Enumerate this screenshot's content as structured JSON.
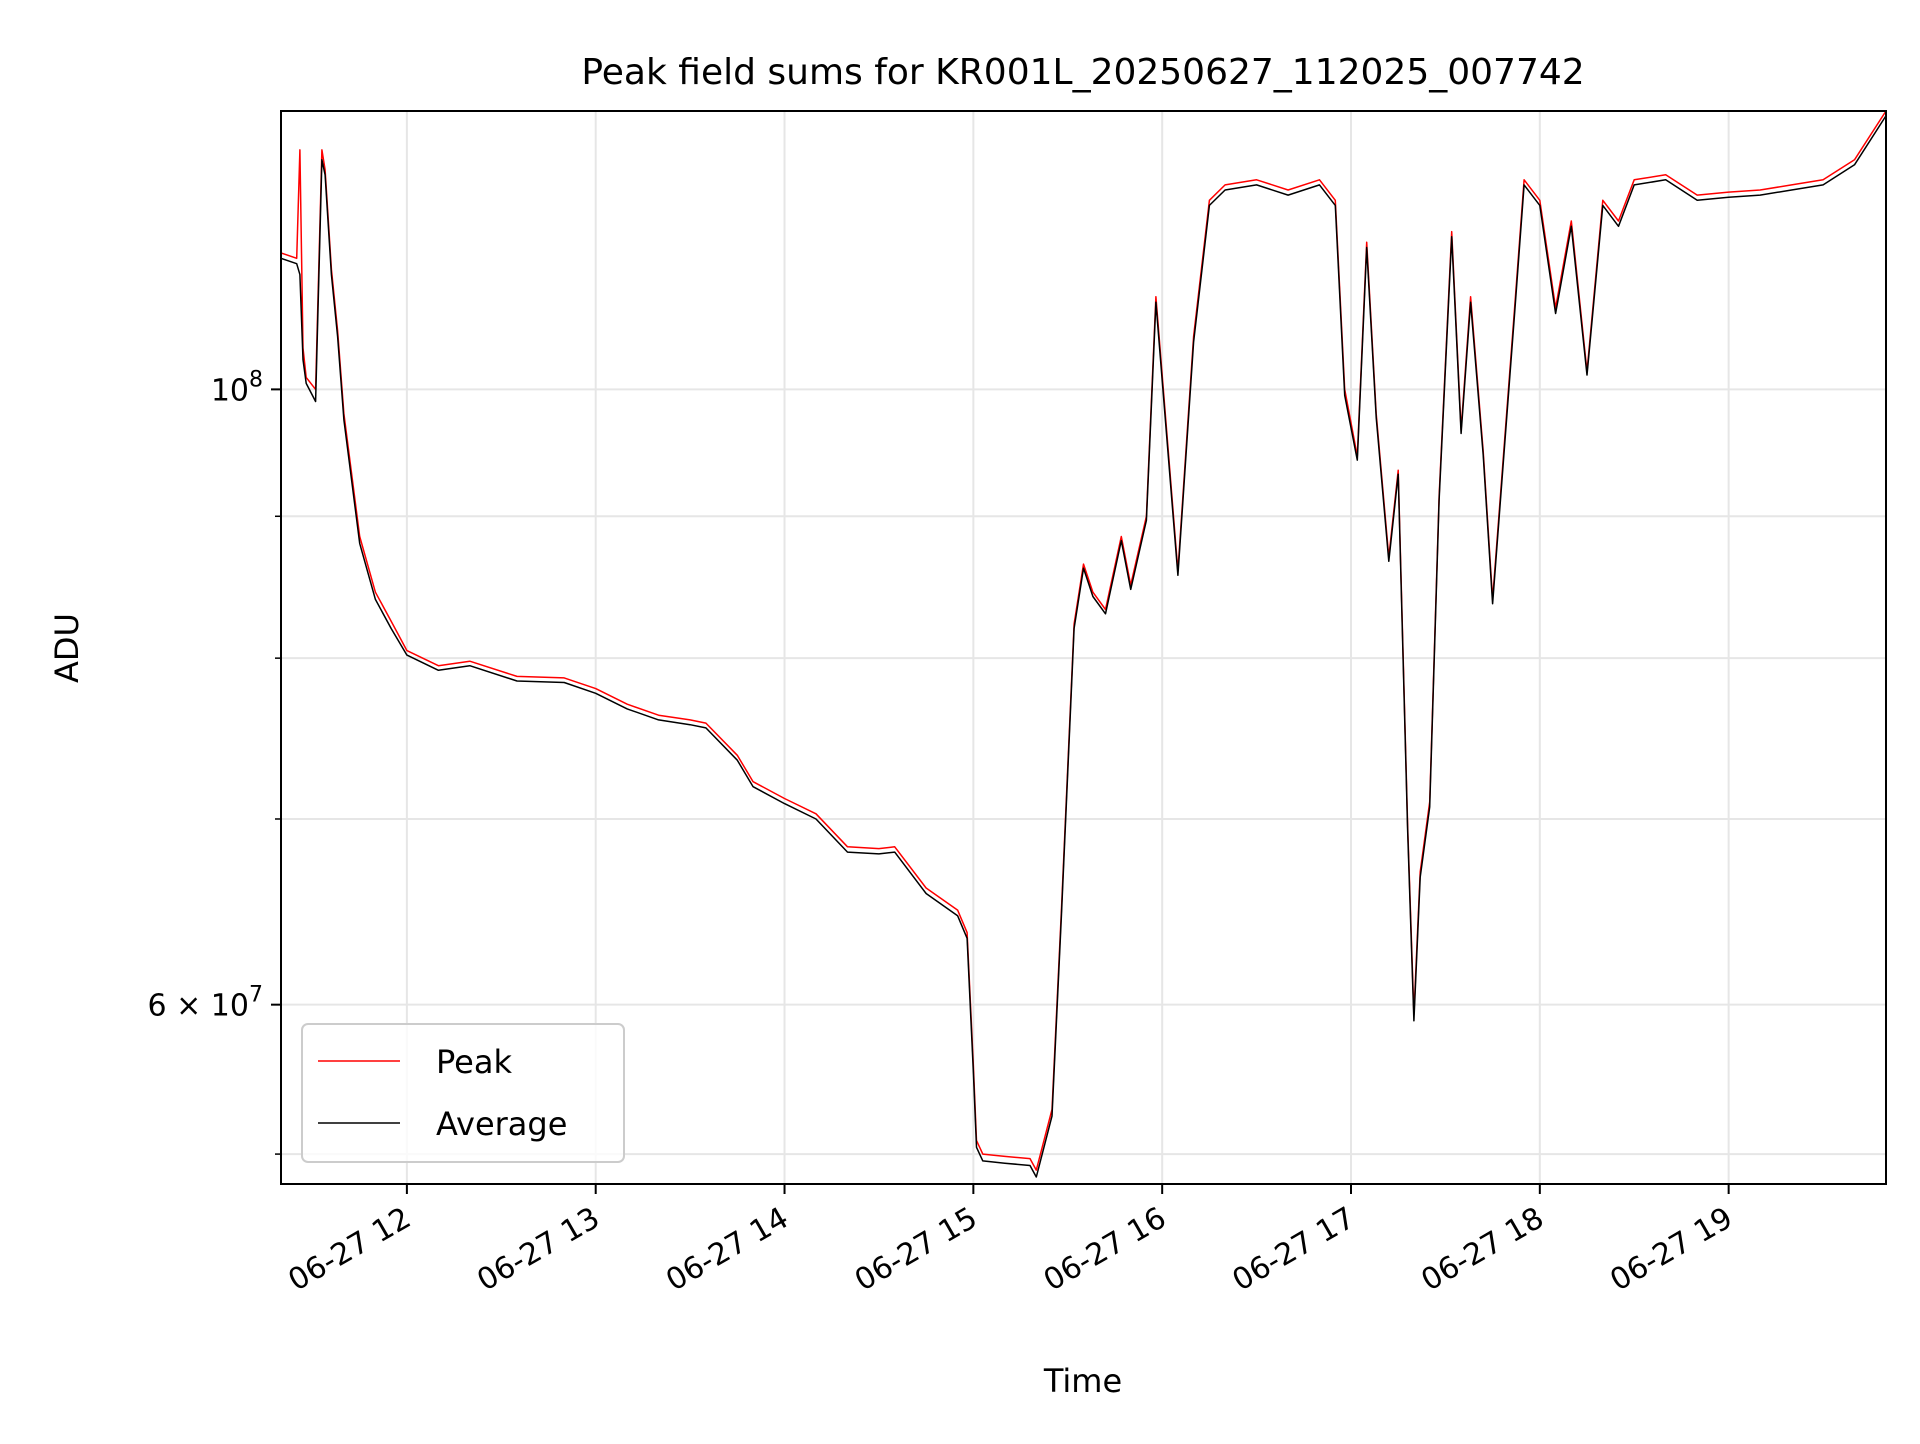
{
  "chart_data": {
    "type": "line",
    "title": "Peak field sums for KR001L_20250627_112025_007742",
    "xlabel": "Time",
    "ylabel": "ADU",
    "y_scale": "log",
    "grid": true,
    "legend_position": "lower-left",
    "xlim": [
      "2025-06-27 11:20",
      "2025-06-27 19:50"
    ],
    "ylim": [
      51700000,
      126000000
    ],
    "x_ticks": [
      {
        "value": "2025-06-27 12:00",
        "label": "06-27 12"
      },
      {
        "value": "2025-06-27 13:00",
        "label": "06-27 13"
      },
      {
        "value": "2025-06-27 14:00",
        "label": "06-27 14"
      },
      {
        "value": "2025-06-27 15:00",
        "label": "06-27 15"
      },
      {
        "value": "2025-06-27 16:00",
        "label": "06-27 16"
      },
      {
        "value": "2025-06-27 17:00",
        "label": "06-27 17"
      },
      {
        "value": "2025-06-27 18:00",
        "label": "06-27 18"
      },
      {
        "value": "2025-06-27 19:00",
        "label": "06-27 19"
      }
    ],
    "y_ticks_major": [
      {
        "value": 100000000,
        "base": "10",
        "exp": "8",
        "mantissa": ""
      },
      {
        "value": 60000000,
        "base": "10",
        "exp": "7",
        "mantissa": "6 × "
      }
    ],
    "y_ticks_minor": [
      53000000,
      70000000,
      80000000,
      90000000
    ],
    "series": [
      {
        "name": "Peak",
        "color": "#ff0000",
        "x": [
          "2025-06-27 11:20",
          "2025-06-27 11:25",
          "2025-06-27 11:26",
          "2025-06-27 11:27",
          "2025-06-27 11:28",
          "2025-06-27 11:31",
          "2025-06-27 11:33",
          "2025-06-27 11:34",
          "2025-06-27 11:36",
          "2025-06-27 11:38",
          "2025-06-27 11:40",
          "2025-06-27 11:45",
          "2025-06-27 11:50",
          "2025-06-27 11:55",
          "2025-06-27 12:00",
          "2025-06-27 12:10",
          "2025-06-27 12:20",
          "2025-06-27 12:35",
          "2025-06-27 12:50",
          "2025-06-27 13:00",
          "2025-06-27 13:10",
          "2025-06-27 13:20",
          "2025-06-27 13:30",
          "2025-06-27 13:35",
          "2025-06-27 13:45",
          "2025-06-27 13:50",
          "2025-06-27 14:00",
          "2025-06-27 14:10",
          "2025-06-27 14:20",
          "2025-06-27 14:30",
          "2025-06-27 14:35",
          "2025-06-27 14:45",
          "2025-06-27 14:55",
          "2025-06-27 14:58",
          "2025-06-27 15:00",
          "2025-06-27 15:01",
          "2025-06-27 15:03",
          "2025-06-27 15:10",
          "2025-06-27 15:18",
          "2025-06-27 15:20",
          "2025-06-27 15:25",
          "2025-06-27 15:28",
          "2025-06-27 15:32",
          "2025-06-27 15:35",
          "2025-06-27 15:38",
          "2025-06-27 15:42",
          "2025-06-27 15:47",
          "2025-06-27 15:50",
          "2025-06-27 15:55",
          "2025-06-27 15:58",
          "2025-06-27 16:05",
          "2025-06-27 16:10",
          "2025-06-27 16:15",
          "2025-06-27 16:20",
          "2025-06-27 16:30",
          "2025-06-27 16:40",
          "2025-06-27 16:50",
          "2025-06-27 16:55",
          "2025-06-27 16:58",
          "2025-06-27 17:02",
          "2025-06-27 17:05",
          "2025-06-27 17:08",
          "2025-06-27 17:12",
          "2025-06-27 17:15",
          "2025-06-27 17:18",
          "2025-06-27 17:20",
          "2025-06-27 17:22",
          "2025-06-27 17:25",
          "2025-06-27 17:28",
          "2025-06-27 17:32",
          "2025-06-27 17:35",
          "2025-06-27 17:38",
          "2025-06-27 17:42",
          "2025-06-27 17:45",
          "2025-06-27 17:52",
          "2025-06-27 17:55",
          "2025-06-27 18:00",
          "2025-06-27 18:05",
          "2025-06-27 18:10",
          "2025-06-27 18:15",
          "2025-06-27 18:20",
          "2025-06-27 18:25",
          "2025-06-27 18:30",
          "2025-06-27 18:40",
          "2025-06-27 18:50",
          "2025-06-27 19:00",
          "2025-06-27 19:10",
          "2025-06-27 19:20",
          "2025-06-27 19:30",
          "2025-06-27 19:40",
          "2025-06-27 19:50"
        ],
        "values": [
          112000000,
          111500000,
          122000000,
          103500000,
          101000000,
          100000000,
          122000000,
          120000000,
          110500000,
          105000000,
          98000000,
          88500000,
          84500000,
          82500000,
          80500000,
          79500000,
          79800000,
          78800000,
          78700000,
          78000000,
          77000000,
          76300000,
          76000000,
          75800000,
          73800000,
          72200000,
          71200000,
          70300000,
          68400000,
          68300000,
          68400000,
          66100000,
          64900000,
          63700000,
          57000000,
          53600000,
          53000000,
          52900000,
          52800000,
          52300000,
          55000000,
          65000000,
          82300000,
          86500000,
          84500000,
          83300000,
          88500000,
          85000000,
          90000000,
          108000000,
          86000000,
          104500000,
          117000000,
          118500000,
          119000000,
          118000000,
          119000000,
          117000000,
          100000000,
          94600000,
          113000000,
          98000000,
          87000000,
          93500000,
          69700000,
          59500000,
          67000000,
          71000000,
          91500000,
          114000000,
          96700000,
          108000000,
          95000000,
          84000000,
          107000000,
          119000000,
          117000000,
          107000000,
          115000000,
          101500000,
          117000000,
          115000000,
          119000000,
          119500000,
          117500000,
          117800000,
          118000000,
          118500000,
          119000000,
          121000000,
          126000000
        ]
      },
      {
        "name": "Average",
        "color": "#000000",
        "x": [
          "2025-06-27 11:20",
          "2025-06-27 11:25",
          "2025-06-27 11:26",
          "2025-06-27 11:27",
          "2025-06-27 11:28",
          "2025-06-27 11:31",
          "2025-06-27 11:33",
          "2025-06-27 11:34",
          "2025-06-27 11:36",
          "2025-06-27 11:38",
          "2025-06-27 11:40",
          "2025-06-27 11:45",
          "2025-06-27 11:50",
          "2025-06-27 11:55",
          "2025-06-27 12:00",
          "2025-06-27 12:10",
          "2025-06-27 12:20",
          "2025-06-27 12:35",
          "2025-06-27 12:50",
          "2025-06-27 13:00",
          "2025-06-27 13:10",
          "2025-06-27 13:20",
          "2025-06-27 13:30",
          "2025-06-27 13:35",
          "2025-06-27 13:45",
          "2025-06-27 13:50",
          "2025-06-27 14:00",
          "2025-06-27 14:10",
          "2025-06-27 14:20",
          "2025-06-27 14:30",
          "2025-06-27 14:35",
          "2025-06-27 14:45",
          "2025-06-27 14:55",
          "2025-06-27 14:58",
          "2025-06-27 15:00",
          "2025-06-27 15:01",
          "2025-06-27 15:03",
          "2025-06-27 15:10",
          "2025-06-27 15:18",
          "2025-06-27 15:20",
          "2025-06-27 15:25",
          "2025-06-27 15:28",
          "2025-06-27 15:32",
          "2025-06-27 15:35",
          "2025-06-27 15:38",
          "2025-06-27 15:42",
          "2025-06-27 15:47",
          "2025-06-27 15:50",
          "2025-06-27 15:55",
          "2025-06-27 15:58",
          "2025-06-27 16:05",
          "2025-06-27 16:10",
          "2025-06-27 16:15",
          "2025-06-27 16:20",
          "2025-06-27 16:30",
          "2025-06-27 16:40",
          "2025-06-27 16:50",
          "2025-06-27 16:55",
          "2025-06-27 16:58",
          "2025-06-27 17:02",
          "2025-06-27 17:05",
          "2025-06-27 17:08",
          "2025-06-27 17:12",
          "2025-06-27 17:15",
          "2025-06-27 17:18",
          "2025-06-27 17:20",
          "2025-06-27 17:22",
          "2025-06-27 17:25",
          "2025-06-27 17:28",
          "2025-06-27 17:32",
          "2025-06-27 17:35",
          "2025-06-27 17:38",
          "2025-06-27 17:42",
          "2025-06-27 17:45",
          "2025-06-27 17:52",
          "2025-06-27 17:55",
          "2025-06-27 18:00",
          "2025-06-27 18:05",
          "2025-06-27 18:10",
          "2025-06-27 18:15",
          "2025-06-27 18:20",
          "2025-06-27 18:25",
          "2025-06-27 18:30",
          "2025-06-27 18:40",
          "2025-06-27 18:50",
          "2025-06-27 19:00",
          "2025-06-27 19:10",
          "2025-06-27 19:20",
          "2025-06-27 19:30",
          "2025-06-27 19:40",
          "2025-06-27 19:50"
        ],
        "values": [
          111500000,
          111000000,
          110000000,
          102500000,
          100500000,
          99000000,
          121000000,
          119500000,
          110000000,
          104500000,
          97500000,
          88000000,
          84000000,
          82000000,
          80200000,
          79200000,
          79500000,
          78500000,
          78400000,
          77700000,
          76700000,
          76000000,
          75700000,
          75500000,
          73500000,
          71900000,
          70900000,
          70000000,
          68100000,
          68000000,
          68100000,
          65800000,
          64600000,
          63400000,
          56700000,
          53300000,
          52700000,
          52600000,
          52500000,
          52000000,
          54700000,
          64700000,
          82000000,
          86200000,
          84200000,
          83000000,
          88200000,
          84700000,
          89700000,
          107500000,
          85700000,
          104000000,
          116500000,
          118000000,
          118500000,
          117500000,
          118500000,
          116500000,
          99500000,
          94300000,
          112500000,
          97700000,
          86700000,
          93200000,
          69400000,
          59200000,
          66700000,
          70700000,
          91200000,
          113500000,
          96400000,
          107500000,
          94700000,
          83700000,
          106500000,
          118500000,
          116500000,
          106500000,
          114500000,
          101200000,
          116500000,
          114500000,
          118500000,
          119000000,
          117000000,
          117300000,
          117500000,
          118000000,
          118500000,
          120500000,
          125500000
        ]
      }
    ]
  }
}
